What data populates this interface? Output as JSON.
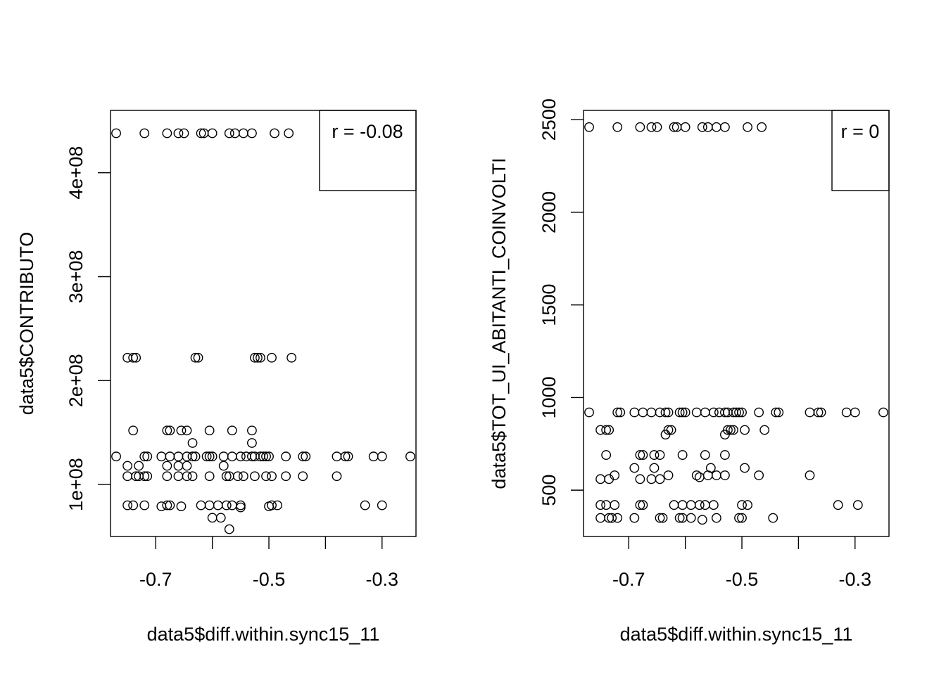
{
  "chart_data": [
    {
      "type": "scatter",
      "title": "",
      "xlabel": "data5$diff.within.sync15_11",
      "ylabel": "data5$CONTRIBUTO",
      "xlim": [
        -0.78,
        -0.24
      ],
      "ylim": [
        50000000,
        460000000
      ],
      "xticks": [
        -0.8,
        -0.7,
        -0.6,
        -0.5,
        -0.4,
        -0.3,
        -0.2
      ],
      "xtick_labels": [
        "",
        "-0.7",
        "",
        "-0.5",
        "",
        "-0.3",
        ""
      ],
      "yticks": [
        100000000,
        200000000,
        300000000,
        400000000
      ],
      "ytick_labels": [
        "1e+08",
        "2e+08",
        "3e+08",
        "4e+08"
      ],
      "annotation": "r = -0.08",
      "legend_position": "top-right",
      "grid": false,
      "marker": "open-circle",
      "points": [
        [
          -0.77,
          438000000
        ],
        [
          -0.72,
          438000000
        ],
        [
          -0.68,
          438000000
        ],
        [
          -0.66,
          438000000
        ],
        [
          -0.65,
          438000000
        ],
        [
          -0.62,
          438000000
        ],
        [
          -0.615,
          438000000
        ],
        [
          -0.6,
          438000000
        ],
        [
          -0.57,
          438000000
        ],
        [
          -0.56,
          438000000
        ],
        [
          -0.545,
          438000000
        ],
        [
          -0.53,
          438000000
        ],
        [
          -0.49,
          438000000
        ],
        [
          -0.465,
          438000000
        ],
        [
          -0.75,
          222000000
        ],
        [
          -0.74,
          222000000
        ],
        [
          -0.735,
          222000000
        ],
        [
          -0.63,
          222000000
        ],
        [
          -0.625,
          222000000
        ],
        [
          -0.525,
          222000000
        ],
        [
          -0.52,
          222000000
        ],
        [
          -0.515,
          222000000
        ],
        [
          -0.495,
          222000000
        ],
        [
          -0.46,
          222000000
        ],
        [
          -0.74,
          152000000
        ],
        [
          -0.68,
          152000000
        ],
        [
          -0.675,
          152000000
        ],
        [
          -0.655,
          152000000
        ],
        [
          -0.645,
          152000000
        ],
        [
          -0.605,
          152000000
        ],
        [
          -0.565,
          152000000
        ],
        [
          -0.53,
          152000000
        ],
        [
          -0.635,
          140000000
        ],
        [
          -0.53,
          140000000
        ],
        [
          -0.77,
          127000000
        ],
        [
          -0.72,
          127000000
        ],
        [
          -0.715,
          127000000
        ],
        [
          -0.69,
          127000000
        ],
        [
          -0.675,
          127000000
        ],
        [
          -0.66,
          127000000
        ],
        [
          -0.645,
          127000000
        ],
        [
          -0.635,
          127000000
        ],
        [
          -0.63,
          127000000
        ],
        [
          -0.61,
          127000000
        ],
        [
          -0.605,
          127000000
        ],
        [
          -0.6,
          127000000
        ],
        [
          -0.58,
          127000000
        ],
        [
          -0.565,
          127000000
        ],
        [
          -0.55,
          127000000
        ],
        [
          -0.54,
          127000000
        ],
        [
          -0.53,
          127000000
        ],
        [
          -0.525,
          127000000
        ],
        [
          -0.515,
          127000000
        ],
        [
          -0.51,
          127000000
        ],
        [
          -0.505,
          127000000
        ],
        [
          -0.5,
          127000000
        ],
        [
          -0.47,
          127000000
        ],
        [
          -0.44,
          127000000
        ],
        [
          -0.435,
          127000000
        ],
        [
          -0.38,
          127000000
        ],
        [
          -0.365,
          127000000
        ],
        [
          -0.36,
          127000000
        ],
        [
          -0.315,
          127000000
        ],
        [
          -0.3,
          127000000
        ],
        [
          -0.25,
          127000000
        ],
        [
          -0.75,
          118000000
        ],
        [
          -0.73,
          118000000
        ],
        [
          -0.68,
          118000000
        ],
        [
          -0.66,
          118000000
        ],
        [
          -0.645,
          118000000
        ],
        [
          -0.58,
          118000000
        ],
        [
          -0.75,
          108000000
        ],
        [
          -0.735,
          108000000
        ],
        [
          -0.73,
          108000000
        ],
        [
          -0.72,
          108000000
        ],
        [
          -0.715,
          108000000
        ],
        [
          -0.68,
          108000000
        ],
        [
          -0.66,
          108000000
        ],
        [
          -0.645,
          108000000
        ],
        [
          -0.635,
          108000000
        ],
        [
          -0.605,
          108000000
        ],
        [
          -0.575,
          108000000
        ],
        [
          -0.57,
          108000000
        ],
        [
          -0.555,
          108000000
        ],
        [
          -0.545,
          108000000
        ],
        [
          -0.525,
          108000000
        ],
        [
          -0.505,
          108000000
        ],
        [
          -0.495,
          108000000
        ],
        [
          -0.47,
          108000000
        ],
        [
          -0.44,
          108000000
        ],
        [
          -0.38,
          108000000
        ],
        [
          -0.75,
          80000000
        ],
        [
          -0.74,
          80000000
        ],
        [
          -0.72,
          80000000
        ],
        [
          -0.69,
          79000000
        ],
        [
          -0.68,
          80000000
        ],
        [
          -0.675,
          80000000
        ],
        [
          -0.655,
          79000000
        ],
        [
          -0.62,
          80000000
        ],
        [
          -0.605,
          80000000
        ],
        [
          -0.59,
          80000000
        ],
        [
          -0.575,
          80000000
        ],
        [
          -0.565,
          80000000
        ],
        [
          -0.55,
          80000000
        ],
        [
          -0.55,
          78000000
        ],
        [
          -0.5,
          79000000
        ],
        [
          -0.495,
          80000000
        ],
        [
          -0.485,
          80000000
        ],
        [
          -0.33,
          80000000
        ],
        [
          -0.3,
          80000000
        ],
        [
          -0.6,
          68000000
        ],
        [
          -0.585,
          68000000
        ],
        [
          -0.57,
          57000000
        ]
      ]
    },
    {
      "type": "scatter",
      "title": "",
      "xlabel": "data5$diff.within.sync15_11",
      "ylabel": "data5$TOT_UI_ABITANTI_COINVOLTI",
      "xlim": [
        -0.78,
        -0.24
      ],
      "ylim": [
        250,
        2550
      ],
      "xticks": [
        -0.8,
        -0.7,
        -0.6,
        -0.5,
        -0.4,
        -0.3,
        -0.2
      ],
      "xtick_labels": [
        "",
        "-0.7",
        "",
        "-0.5",
        "",
        "-0.3",
        ""
      ],
      "yticks": [
        500,
        1000,
        1500,
        2000,
        2500
      ],
      "ytick_labels": [
        "500",
        "1000",
        "1500",
        "2000",
        "2500"
      ],
      "annotation": "r = 0",
      "legend_position": "top-right",
      "grid": false,
      "marker": "open-circle",
      "points": [
        [
          -0.77,
          2460
        ],
        [
          -0.72,
          2460
        ],
        [
          -0.68,
          2460
        ],
        [
          -0.66,
          2460
        ],
        [
          -0.65,
          2460
        ],
        [
          -0.62,
          2460
        ],
        [
          -0.615,
          2460
        ],
        [
          -0.6,
          2460
        ],
        [
          -0.57,
          2460
        ],
        [
          -0.56,
          2460
        ],
        [
          -0.545,
          2460
        ],
        [
          -0.53,
          2460
        ],
        [
          -0.49,
          2460
        ],
        [
          -0.465,
          2460
        ],
        [
          -0.77,
          920
        ],
        [
          -0.72,
          920
        ],
        [
          -0.715,
          920
        ],
        [
          -0.69,
          920
        ],
        [
          -0.675,
          920
        ],
        [
          -0.66,
          920
        ],
        [
          -0.645,
          920
        ],
        [
          -0.635,
          920
        ],
        [
          -0.63,
          920
        ],
        [
          -0.61,
          920
        ],
        [
          -0.605,
          920
        ],
        [
          -0.6,
          920
        ],
        [
          -0.58,
          920
        ],
        [
          -0.565,
          920
        ],
        [
          -0.55,
          920
        ],
        [
          -0.54,
          920
        ],
        [
          -0.53,
          920
        ],
        [
          -0.525,
          920
        ],
        [
          -0.515,
          920
        ],
        [
          -0.51,
          920
        ],
        [
          -0.505,
          920
        ],
        [
          -0.5,
          920
        ],
        [
          -0.47,
          920
        ],
        [
          -0.44,
          920
        ],
        [
          -0.435,
          920
        ],
        [
          -0.38,
          920
        ],
        [
          -0.365,
          920
        ],
        [
          -0.36,
          920
        ],
        [
          -0.315,
          920
        ],
        [
          -0.3,
          920
        ],
        [
          -0.25,
          920
        ],
        [
          -0.75,
          825
        ],
        [
          -0.74,
          825
        ],
        [
          -0.735,
          825
        ],
        [
          -0.63,
          825
        ],
        [
          -0.625,
          825
        ],
        [
          -0.525,
          825
        ],
        [
          -0.52,
          825
        ],
        [
          -0.515,
          825
        ],
        [
          -0.495,
          825
        ],
        [
          -0.46,
          825
        ],
        [
          -0.635,
          800
        ],
        [
          -0.53,
          800
        ],
        [
          -0.74,
          690
        ],
        [
          -0.68,
          690
        ],
        [
          -0.675,
          690
        ],
        [
          -0.655,
          690
        ],
        [
          -0.645,
          690
        ],
        [
          -0.605,
          690
        ],
        [
          -0.565,
          690
        ],
        [
          -0.53,
          690
        ],
        [
          -0.69,
          620
        ],
        [
          -0.655,
          620
        ],
        [
          -0.555,
          620
        ],
        [
          -0.495,
          620
        ],
        [
          -0.75,
          560
        ],
        [
          -0.735,
          560
        ],
        [
          -0.725,
          580
        ],
        [
          -0.68,
          560
        ],
        [
          -0.66,
          560
        ],
        [
          -0.645,
          560
        ],
        [
          -0.63,
          580
        ],
        [
          -0.58,
          580
        ],
        [
          -0.575,
          570
        ],
        [
          -0.56,
          580
        ],
        [
          -0.545,
          580
        ],
        [
          -0.53,
          580
        ],
        [
          -0.47,
          580
        ],
        [
          -0.38,
          580
        ],
        [
          -0.75,
          420
        ],
        [
          -0.74,
          420
        ],
        [
          -0.725,
          420
        ],
        [
          -0.68,
          420
        ],
        [
          -0.675,
          420
        ],
        [
          -0.62,
          420
        ],
        [
          -0.605,
          420
        ],
        [
          -0.59,
          420
        ],
        [
          -0.575,
          420
        ],
        [
          -0.565,
          420
        ],
        [
          -0.55,
          420
        ],
        [
          -0.5,
          420
        ],
        [
          -0.49,
          420
        ],
        [
          -0.33,
          420
        ],
        [
          -0.295,
          420
        ],
        [
          -0.75,
          350
        ],
        [
          -0.735,
          350
        ],
        [
          -0.73,
          350
        ],
        [
          -0.72,
          350
        ],
        [
          -0.69,
          350
        ],
        [
          -0.645,
          350
        ],
        [
          -0.64,
          350
        ],
        [
          -0.61,
          350
        ],
        [
          -0.605,
          350
        ],
        [
          -0.59,
          350
        ],
        [
          -0.545,
          350
        ],
        [
          -0.505,
          350
        ],
        [
          -0.5,
          350
        ],
        [
          -0.445,
          350
        ],
        [
          -0.57,
          340
        ]
      ]
    }
  ]
}
